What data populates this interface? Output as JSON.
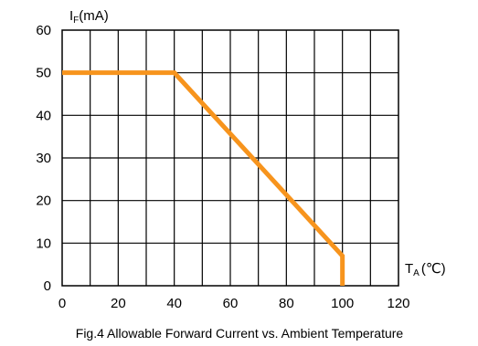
{
  "chart_data": {
    "type": "line",
    "title": "",
    "caption": "Fig.4 Allowable Forward Current vs. Ambient Temperature",
    "ylabel": "(mA)",
    "ylabel_main": "I",
    "ylabel_sub": "F",
    "xlabel_main": "T",
    "xlabel_sub": "A",
    "xlabel_unit": "(℃)",
    "xlim": [
      0,
      120
    ],
    "ylim": [
      0,
      60
    ],
    "x_ticks": [
      "0",
      "20",
      "40",
      "60",
      "80",
      "100",
      "120"
    ],
    "y_ticks": [
      "0",
      "10",
      "20",
      "30",
      "40",
      "50",
      "60"
    ],
    "grid": true,
    "series": [
      {
        "x": [
          0,
          40,
          100,
          100
        ],
        "y": [
          50,
          50,
          7,
          0
        ],
        "color": "#F7941D"
      }
    ]
  }
}
